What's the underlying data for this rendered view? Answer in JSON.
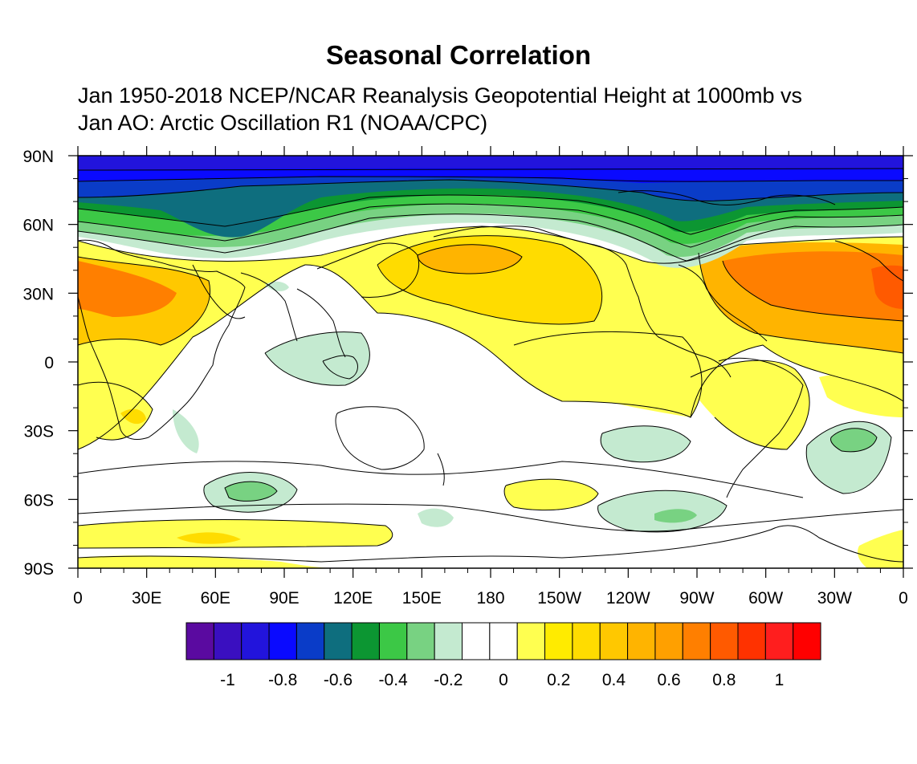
{
  "title": "Seasonal Correlation",
  "subtitle_line1": "Jan 1950-2018 NCEP/NCAR Reanalysis Geopotential Height at 1000mb vs",
  "subtitle_line2": "Jan AO: Arctic Oscillation R1 (NOAA/CPC)",
  "map": {
    "projection": "cylindrical equidistant",
    "lon_range": [
      0,
      360
    ],
    "lat_range": [
      -90,
      90
    ],
    "lat_ticks": [
      {
        "value": 90,
        "label": "90N"
      },
      {
        "value": 60,
        "label": "60N"
      },
      {
        "value": 30,
        "label": "30N"
      },
      {
        "value": 0,
        "label": "0"
      },
      {
        "value": -30,
        "label": "30S"
      },
      {
        "value": -60,
        "label": "60S"
      },
      {
        "value": -90,
        "label": "90S"
      }
    ],
    "lon_ticks": [
      {
        "value": 0,
        "label": "0"
      },
      {
        "value": 30,
        "label": "30E"
      },
      {
        "value": 60,
        "label": "60E"
      },
      {
        "value": 90,
        "label": "90E"
      },
      {
        "value": 120,
        "label": "120E"
      },
      {
        "value": 150,
        "label": "150E"
      },
      {
        "value": 180,
        "label": "180"
      },
      {
        "value": 210,
        "label": "150W"
      },
      {
        "value": 240,
        "label": "120W"
      },
      {
        "value": 270,
        "label": "90W"
      },
      {
        "value": 300,
        "label": "60W"
      },
      {
        "value": 330,
        "label": "30W"
      },
      {
        "value": 360,
        "label": "0"
      }
    ]
  },
  "colorbar": {
    "colors": [
      "#5a0aa0",
      "#3a0fc0",
      "#2214dc",
      "#0a0aff",
      "#0a3cc8",
      "#0e6e7e",
      "#0c9632",
      "#3cc846",
      "#78d282",
      "#c4ead0",
      "#ffffff",
      "#ffffff",
      "#ffff50",
      "#ffeb00",
      "#ffdc00",
      "#ffc800",
      "#ffb400",
      "#ffa000",
      "#ff7f00",
      "#ff5a00",
      "#ff3200",
      "#ff1e1e",
      "#ff0000"
    ],
    "labels": [
      {
        "index": 1,
        "text": "-1"
      },
      {
        "index": 3,
        "text": "-0.8"
      },
      {
        "index": 5,
        "text": "-0.6"
      },
      {
        "index": 7,
        "text": "-0.4"
      },
      {
        "index": 9,
        "text": "-0.2"
      },
      {
        "index": 11,
        "text": "0"
      },
      {
        "index": 13,
        "text": "0.2"
      },
      {
        "index": 15,
        "text": "0.4"
      },
      {
        "index": 17,
        "text": "0.6"
      },
      {
        "index": 19,
        "text": "0.8"
      },
      {
        "index": 21,
        "text": "1"
      }
    ]
  },
  "regions": [
    {
      "name": "arctic-negative-band",
      "value": -0.9,
      "lon": 180,
      "lat": 80
    },
    {
      "name": "atlantic-europe-positive",
      "value": 0.6,
      "lon": 330,
      "lat": 35
    },
    {
      "name": "north-pacific-positive",
      "value": 0.4,
      "lon": 170,
      "lat": 45
    },
    {
      "name": "tropics-near-zero",
      "value": 0.0,
      "lon": 100,
      "lat": -10
    },
    {
      "name": "southern-ocean-negative",
      "value": -0.3,
      "lon": 80,
      "lat": -55
    },
    {
      "name": "antarctic-positive",
      "value": 0.2,
      "lon": 60,
      "lat": -80
    }
  ]
}
